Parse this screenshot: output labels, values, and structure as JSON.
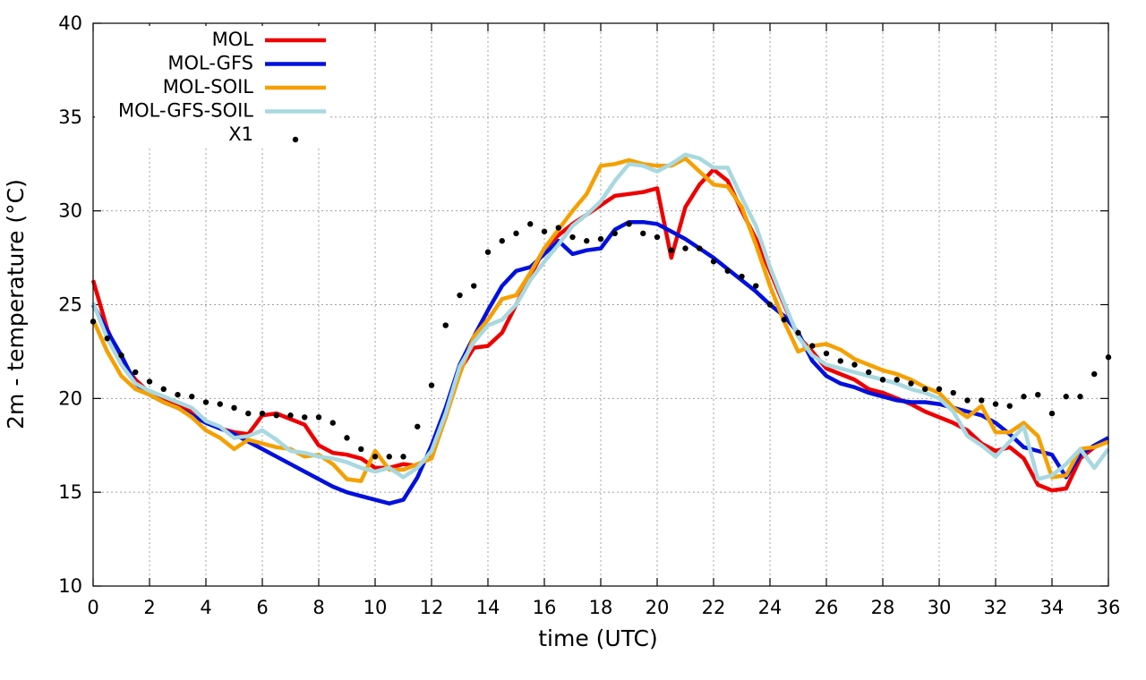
{
  "chart_data": {
    "type": "line",
    "title": "",
    "xlabel": "time (UTC)",
    "ylabel": "2m - temperature (°C)",
    "xlim": [
      0,
      36
    ],
    "ylim": [
      10,
      40
    ],
    "xticks": [
      0,
      2,
      4,
      6,
      8,
      10,
      12,
      14,
      16,
      18,
      20,
      22,
      24,
      26,
      28,
      30,
      32,
      34,
      36
    ],
    "yticks": [
      10,
      15,
      20,
      25,
      30,
      35,
      40
    ],
    "grid": true,
    "legend_position": "top-left",
    "series": [
      {
        "name": "MOL",
        "color": "#ee0000",
        "style": "line",
        "x": [
          0,
          0.5,
          1,
          1.5,
          2,
          2.5,
          3,
          3.5,
          4,
          4.5,
          5,
          5.5,
          6,
          6.5,
          7,
          7.5,
          8,
          8.5,
          9,
          9.5,
          10,
          10.5,
          11,
          11.5,
          12,
          12.5,
          13,
          13.5,
          14,
          14.5,
          15,
          15.5,
          16,
          16.5,
          17,
          17.5,
          18,
          18.5,
          19,
          19.5,
          20,
          20.5,
          21,
          21.5,
          22,
          22.5,
          23,
          23.5,
          24,
          24.5,
          25,
          25.5,
          26,
          26.5,
          27,
          27.5,
          28,
          28.5,
          29,
          29.5,
          30,
          30.5,
          31,
          31.5,
          32,
          32.5,
          33,
          33.5,
          34,
          34.5,
          35,
          35.5,
          36
        ],
        "y": [
          26.3,
          23.7,
          22,
          21,
          20.3,
          20,
          19.7,
          19.3,
          18.8,
          18.4,
          18.2,
          18.1,
          19.1,
          19.2,
          18.9,
          18.6,
          17.5,
          17.1,
          17,
          16.8,
          16.3,
          16.3,
          16.5,
          16.4,
          17,
          19,
          21.5,
          22.7,
          22.8,
          23.5,
          25,
          26.5,
          28,
          28.7,
          29.3,
          29.8,
          30.3,
          30.8,
          30.9,
          31,
          31.2,
          27.5,
          30.2,
          31.4,
          32.2,
          31.6,
          30,
          28.5,
          26.8,
          25,
          23.3,
          22.5,
          21.6,
          21.3,
          21,
          20.5,
          20.3,
          20,
          19.7,
          19.3,
          19,
          18.7,
          18.3,
          17.6,
          17.2,
          17.4,
          16.8,
          15.4,
          15.1,
          15.2,
          16.8,
          17.4,
          17.8
        ]
      },
      {
        "name": "MOL-GFS",
        "color": "#0010dd",
        "style": "line",
        "x": [
          0,
          0.5,
          1,
          1.5,
          2,
          2.5,
          3,
          3.5,
          4,
          4.5,
          5,
          5.5,
          6,
          6.5,
          7,
          7.5,
          8,
          8.5,
          9,
          9.5,
          10,
          10.5,
          11,
          11.5,
          12,
          12.5,
          13,
          13.5,
          14,
          14.5,
          15,
          15.5,
          16,
          16.5,
          17,
          17.5,
          18,
          18.5,
          19,
          19.5,
          20,
          20.5,
          21,
          21.5,
          22,
          22.5,
          23,
          23.5,
          24,
          24.5,
          25,
          25.5,
          26,
          26.5,
          27,
          27.5,
          28,
          28.5,
          29,
          29.5,
          30,
          30.5,
          31,
          31.5,
          32,
          32.5,
          33,
          33.5,
          34,
          34.5,
          35,
          35.5,
          36
        ],
        "y": [
          25,
          23.6,
          22.3,
          20.8,
          20.2,
          19.8,
          19.5,
          19.1,
          18.7,
          18.4,
          18.1,
          17.7,
          17.3,
          16.9,
          16.5,
          16.1,
          15.7,
          15.3,
          15,
          14.8,
          14.6,
          14.4,
          14.6,
          15.8,
          17.5,
          19.5,
          21.8,
          23.3,
          24.7,
          26,
          26.8,
          27,
          27.7,
          28.4,
          27.7,
          27.9,
          28,
          29,
          29.4,
          29.4,
          29.3,
          28.9,
          28.5,
          28,
          27.5,
          26.9,
          26.3,
          25.7,
          25,
          24.4,
          23.5,
          22,
          21.2,
          20.8,
          20.6,
          20.3,
          20.1,
          19.9,
          19.8,
          19.8,
          19.7,
          19.5,
          19.3,
          19.1,
          18.7,
          18.1,
          17.4,
          17.2,
          17,
          15.8,
          17,
          17.5,
          17.9
        ]
      },
      {
        "name": "MOL-SOIL",
        "color": "#f5a000",
        "style": "line",
        "x": [
          0,
          0.5,
          1,
          1.5,
          2,
          2.5,
          3,
          3.5,
          4,
          4.5,
          5,
          5.5,
          6,
          6.5,
          7,
          7.5,
          8,
          8.5,
          9,
          9.5,
          10,
          10.5,
          11,
          11.5,
          12,
          12.5,
          13,
          13.5,
          14,
          14.5,
          15,
          15.5,
          16,
          16.5,
          17,
          17.5,
          18,
          18.5,
          19,
          19.5,
          20,
          20.5,
          21,
          21.5,
          22,
          22.5,
          23,
          23.5,
          24,
          24.5,
          25,
          25.5,
          26,
          26.5,
          27,
          27.5,
          28,
          28.5,
          29,
          29.5,
          30,
          30.5,
          31,
          31.5,
          32,
          32.5,
          33,
          33.5,
          34,
          34.5,
          35,
          35.5,
          36
        ],
        "y": [
          24.2,
          22.5,
          21.2,
          20.5,
          20.2,
          19.8,
          19.5,
          19,
          18.3,
          17.9,
          17.3,
          17.8,
          17.6,
          17.4,
          17.3,
          16.9,
          17,
          16.5,
          15.7,
          15.6,
          17.2,
          16.2,
          16.2,
          16.5,
          16.8,
          19,
          21.3,
          23.3,
          24.2,
          25.3,
          25.5,
          26.7,
          28,
          29,
          30,
          30.9,
          32.4,
          32.5,
          32.7,
          32.5,
          32.4,
          32.4,
          32.8,
          32.1,
          31.4,
          31.3,
          30.2,
          28.2,
          26,
          24.1,
          22.5,
          22.8,
          22.9,
          22.6,
          22.1,
          21.8,
          21.5,
          21.3,
          21,
          20.6,
          20.3,
          19.5,
          19,
          19.6,
          18.2,
          18.2,
          18.7,
          18,
          15.8,
          15.9,
          17.3,
          17.4,
          17.7
        ]
      },
      {
        "name": "MOL-GFS-SOIL",
        "color": "#a8d8e0",
        "style": "line",
        "x": [
          0,
          0.5,
          1,
          1.5,
          2,
          2.5,
          3,
          3.5,
          4,
          4.5,
          5,
          5.5,
          6,
          6.5,
          7,
          7.5,
          8,
          8.5,
          9,
          9.5,
          10,
          10.5,
          11,
          11.5,
          12,
          12.5,
          13,
          13.5,
          14,
          14.5,
          15,
          15.5,
          16,
          16.5,
          17,
          17.5,
          18,
          18.5,
          19,
          19.5,
          20,
          20.5,
          21,
          21.5,
          22,
          22.5,
          23,
          23.5,
          24,
          24.5,
          25,
          25.5,
          26,
          26.5,
          27,
          27.5,
          28,
          28.5,
          29,
          29.5,
          30,
          30.5,
          31,
          31.5,
          32,
          32.5,
          33,
          33.5,
          34,
          34.5,
          35,
          35.5,
          36
        ],
        "y": [
          25.1,
          23.2,
          21.8,
          20.8,
          20.4,
          20.1,
          19.8,
          19.5,
          18.8,
          18.5,
          17.9,
          18,
          18.3,
          17.8,
          17.2,
          17.1,
          16.9,
          16.8,
          16.6,
          16.3,
          16.1,
          16.3,
          15.8,
          16.3,
          17.2,
          19.2,
          21.7,
          23,
          23.9,
          24.2,
          25,
          26.3,
          27.3,
          28.2,
          29.2,
          29.8,
          30.5,
          31.6,
          32.5,
          32.4,
          32.1,
          32.5,
          33,
          32.8,
          32.3,
          32.3,
          30.7,
          29.2,
          27,
          25.1,
          23.3,
          22.3,
          21.8,
          21.6,
          21.4,
          21.2,
          21,
          20.8,
          20.5,
          20.3,
          20,
          19.3,
          18,
          17.5,
          16.9,
          17.7,
          18.5,
          15.7,
          15.9,
          16.5,
          17.3,
          16.3,
          17.3
        ]
      },
      {
        "name": "X1",
        "color": "#000000",
        "style": "points",
        "x": [
          0,
          0.5,
          1,
          1.5,
          2,
          2.5,
          3,
          3.5,
          4,
          4.5,
          5,
          5.5,
          6,
          6.5,
          7,
          7.5,
          8,
          8.5,
          9,
          9.5,
          10,
          10.5,
          11,
          11.5,
          12,
          12.5,
          13,
          13.5,
          14,
          14.5,
          15,
          15.5,
          16,
          16.5,
          17,
          17.5,
          18,
          18.5,
          19,
          19.5,
          20,
          20.5,
          21,
          21.5,
          22,
          22.5,
          23,
          23.5,
          24,
          24.5,
          25,
          25.5,
          26,
          26.5,
          27,
          27.5,
          28,
          28.5,
          29,
          29.5,
          30,
          30.5,
          31,
          31.5,
          32,
          32.5,
          33,
          33.5,
          34,
          34.5,
          35,
          35.5,
          36
        ],
        "y": [
          24.1,
          23.2,
          22.3,
          21.4,
          20.9,
          20.5,
          20.2,
          20.1,
          19.8,
          19.7,
          19.5,
          19.2,
          19.2,
          19.1,
          19.1,
          19,
          19,
          18.7,
          17.9,
          17.3,
          16.9,
          16.9,
          16.9,
          18.5,
          20.7,
          23.9,
          25.5,
          26,
          27.8,
          28.4,
          28.8,
          29.3,
          28.9,
          29.1,
          28.6,
          28.4,
          28.5,
          28.8,
          29.3,
          28.8,
          28.6,
          27.9,
          28,
          28,
          27.3,
          26.8,
          26.5,
          26,
          25,
          24.2,
          23.5,
          22.8,
          22.4,
          22,
          21.8,
          21.4,
          21,
          21,
          20.8,
          20.5,
          20.5,
          20.3,
          19.9,
          19.9,
          19.7,
          19.6,
          20.1,
          20.2,
          19.2,
          20.1,
          20.1,
          21.3,
          22.2
        ]
      }
    ]
  }
}
